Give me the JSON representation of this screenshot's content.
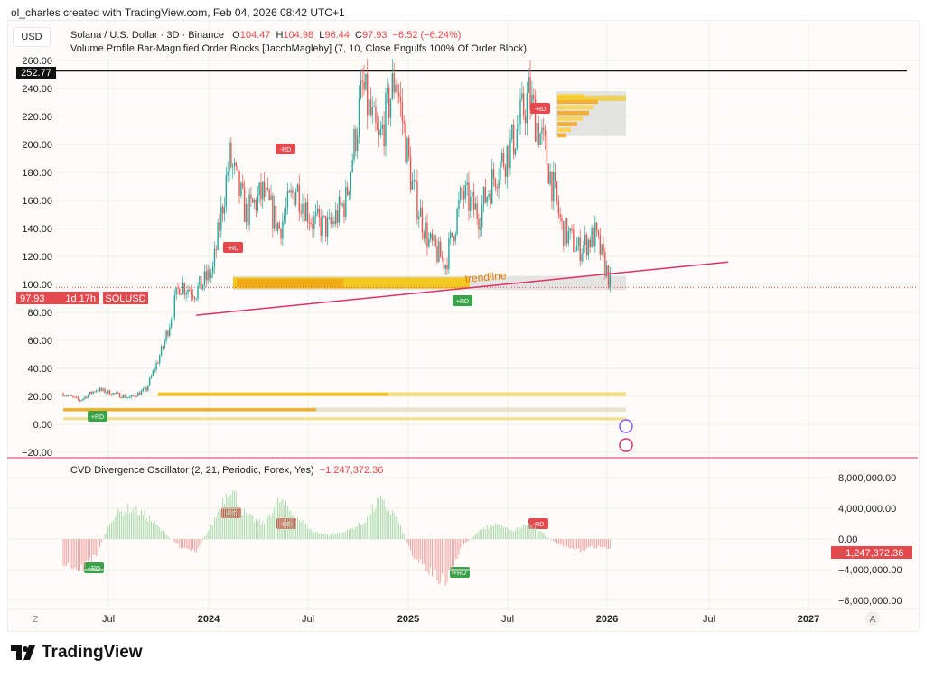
{
  "credit": "ol_charles created with TradingView.com, Feb 04, 2026 08:42 UTC+1",
  "currency": "USD",
  "legend": {
    "symbol": "Solana / U.S. Dollar · 3D · Binance",
    "o_label": "O",
    "o": "104.47",
    "h_label": "H",
    "h": "104.98",
    "l_label": "L",
    "l": "96.44",
    "c_label": "C",
    "c": "97.93",
    "change": "−6.52 (−6.24%)",
    "indicator": "Volume Profile Bar-Magnified Order Blocks [JacobMagleby] (7, 10, Close Engulfs 100% Of Order Block)"
  },
  "price_tag": {
    "value": "97.93",
    "countdown": "1d 17h",
    "symbol": "SOLUSD"
  },
  "hline_tag": "252.77",
  "trendline_label": "trendline",
  "oscillator": {
    "name": "CVD Divergence Oscillator (2, 21, Periodic, Forex, Yes)",
    "value": "−1,247,372.36",
    "tag": "−1,247,372.36"
  },
  "bottom": {
    "left_btn": "Z",
    "right_btn": "A"
  },
  "logo": "TradingView",
  "colors": {
    "up": "#26a69a",
    "down": "#ef5350",
    "trend": "#e0306b",
    "ob": "#f5c400",
    "tag_red": "#e5484d",
    "rd_green": "#3aa34a"
  },
  "chart_data": {
    "type": "candlestick",
    "title": "Solana / U.S. Dollar · 3D · Binance",
    "y_axis": {
      "position": "left",
      "ticks": [
        "260.00",
        "240.00",
        "220.00",
        "200.00",
        "180.00",
        "160.00",
        "140.00",
        "120.00",
        "100.00",
        "80.00",
        "60.00",
        "40.00",
        "20.00",
        "0.00",
        "−20.00"
      ],
      "range": [
        -20,
        265
      ]
    },
    "x_axis": {
      "ticks": [
        "Jul",
        "2024",
        "Jul",
        "2025",
        "Jul",
        "2026",
        "Jul",
        "2027"
      ]
    },
    "approx_close_monthly": {
      "x": [
        "2023-05",
        "2023-06",
        "2023-07",
        "2023-08",
        "2023-09",
        "2023-10",
        "2023-11",
        "2023-12",
        "2024-01",
        "2024-02",
        "2024-03",
        "2024-04",
        "2024-05",
        "2024-06",
        "2024-07",
        "2024-08",
        "2024-09",
        "2024-10",
        "2024-11",
        "2024-12",
        "2025-01",
        "2025-02",
        "2025-03",
        "2025-04",
        "2025-05",
        "2025-06",
        "2025-07",
        "2025-08",
        "2025-09",
        "2025-10",
        "2025-11",
        "2025-12",
        "2026-01",
        "2026-02"
      ],
      "y": [
        22,
        17,
        25,
        22,
        19,
        25,
        55,
        100,
        95,
        110,
        190,
        150,
        165,
        140,
        170,
        145,
        140,
        160,
        240,
        200,
        250,
        170,
        130,
        115,
        165,
        150,
        180,
        200,
        235,
        195,
        140,
        125,
        135,
        98
      ]
    },
    "horizontal_line": 252.77,
    "current_price": 97.93,
    "trendline": {
      "from": [
        "2024-01",
        78
      ],
      "to": [
        "2026-09",
        116
      ]
    },
    "order_blocks": [
      [
        96,
        106
      ],
      [
        20,
        23
      ],
      [
        9,
        12
      ],
      [
        3,
        5
      ],
      [
        206,
        238
      ]
    ],
    "rd_signals": [
      {
        "label": "-RD",
        "date": "2024-01"
      },
      {
        "label": "-RD",
        "date": "2024-05"
      },
      {
        "label": "-RD",
        "date": "2025-08"
      },
      {
        "label": "+RD",
        "date": "2023-06"
      },
      {
        "label": "+RD",
        "date": "2025-04"
      }
    ],
    "oscillator": {
      "y_ticks": [
        "8,000,000.00",
        "4,000,000.00",
        "0.00",
        "−4,000,000.00",
        "−8,000,000.00"
      ],
      "approx_monthly_millions": [
        -3,
        -4,
        -2,
        3,
        4,
        3,
        1,
        -1,
        -1.5,
        2,
        7,
        3,
        2,
        5,
        3,
        1,
        0.5,
        1,
        2,
        5,
        3,
        -2,
        -4,
        -6,
        -1,
        1,
        2,
        1,
        2,
        0.5,
        -1,
        -1.5,
        -1,
        -1.25
      ]
    }
  }
}
